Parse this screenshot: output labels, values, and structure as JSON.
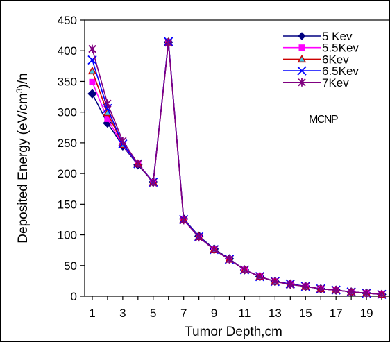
{
  "chart_data": {
    "type": "line",
    "title": "",
    "xlabel": "Tumor Depth,cm",
    "ylabel": {
      "prefix": "Deposited Energy (eV/cm",
      "superscript": "3",
      "suffix": ")/n"
    },
    "xlim": [
      0.5,
      20.5
    ],
    "ylim": [
      0,
      450
    ],
    "x_ticks": [
      1,
      3,
      5,
      7,
      9,
      11,
      13,
      15,
      17,
      19
    ],
    "y_ticks": [
      0,
      50,
      100,
      150,
      200,
      250,
      300,
      350,
      400,
      450
    ],
    "grid": false,
    "legend_position": "top-right",
    "annotation": "MCNP",
    "x": [
      1,
      2,
      3,
      4,
      5,
      6,
      7,
      8,
      9,
      10,
      11,
      12,
      13,
      14,
      15,
      16,
      17,
      18,
      19,
      20
    ],
    "series": [
      {
        "name": "5 Kev",
        "color": "#000080",
        "marker": "diamond",
        "values": [
          330,
          282,
          245,
          214,
          186,
          414,
          126,
          98,
          77,
          61,
          43,
          32,
          24,
          20,
          16,
          12,
          10,
          7,
          5,
          3
        ]
      },
      {
        "name": "5.5Kev",
        "color": "#ff00ff",
        "marker": "square",
        "values": [
          349,
          289,
          246,
          216,
          186,
          414,
          125,
          97,
          76,
          60,
          43,
          32,
          24,
          20,
          16,
          12,
          10,
          7,
          5,
          3
        ]
      },
      {
        "name": "6Kev",
        "color": "#cc0000",
        "marker": "triangle",
        "values": [
          367,
          299,
          247,
          216,
          186,
          414,
          125,
          97,
          76,
          60,
          43,
          32,
          24,
          20,
          16,
          12,
          10,
          7,
          5,
          3
        ]
      },
      {
        "name": "6.5Kev",
        "color": "#0000ff",
        "marker": "x",
        "values": [
          385,
          306,
          248,
          216,
          186,
          415,
          125,
          97,
          76,
          60,
          43,
          32,
          24,
          20,
          16,
          12,
          10,
          7,
          5,
          3
        ]
      },
      {
        "name": "7Kev",
        "color": "#800080",
        "marker": "asterisk",
        "values": [
          403,
          314,
          253,
          216,
          185,
          413,
          124,
          96,
          76,
          60,
          43,
          32,
          24,
          19,
          16,
          12,
          10,
          7,
          5,
          3
        ]
      }
    ]
  }
}
